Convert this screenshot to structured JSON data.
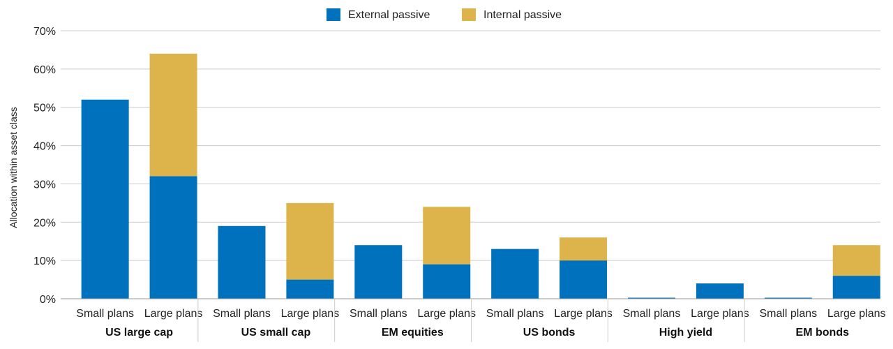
{
  "colors": {
    "external": "#0071BC",
    "internal": "#DDB44B",
    "grid": "#cccccc",
    "axis": "#999999"
  },
  "chart_data": {
    "type": "bar",
    "stacked": true,
    "title": "",
    "ylabel": "Allocation within asset class",
    "ylim": [
      0,
      70
    ],
    "yticks": [
      0,
      10,
      20,
      30,
      40,
      50,
      60,
      70
    ],
    "ytick_labels": [
      "0%",
      "10%",
      "20%",
      "30%",
      "40%",
      "50%",
      "60%",
      "70%"
    ],
    "grid": true,
    "legend_position": "top-center",
    "groups": [
      "US large cap",
      "US small cap",
      "EM equities",
      "US bonds",
      "High yield",
      "EM bonds"
    ],
    "subcategories": [
      "Small plans",
      "Large plans"
    ],
    "series": [
      {
        "name": "External passive",
        "values": [
          [
            52,
            32
          ],
          [
            19,
            5
          ],
          [
            14,
            9
          ],
          [
            13,
            10
          ],
          [
            0,
            4
          ],
          [
            0,
            6
          ]
        ]
      },
      {
        "name": "Internal passive",
        "values": [
          [
            0,
            32
          ],
          [
            0,
            20
          ],
          [
            0,
            15
          ],
          [
            0,
            6
          ],
          [
            0,
            0
          ],
          [
            0,
            8
          ]
        ]
      }
    ]
  }
}
